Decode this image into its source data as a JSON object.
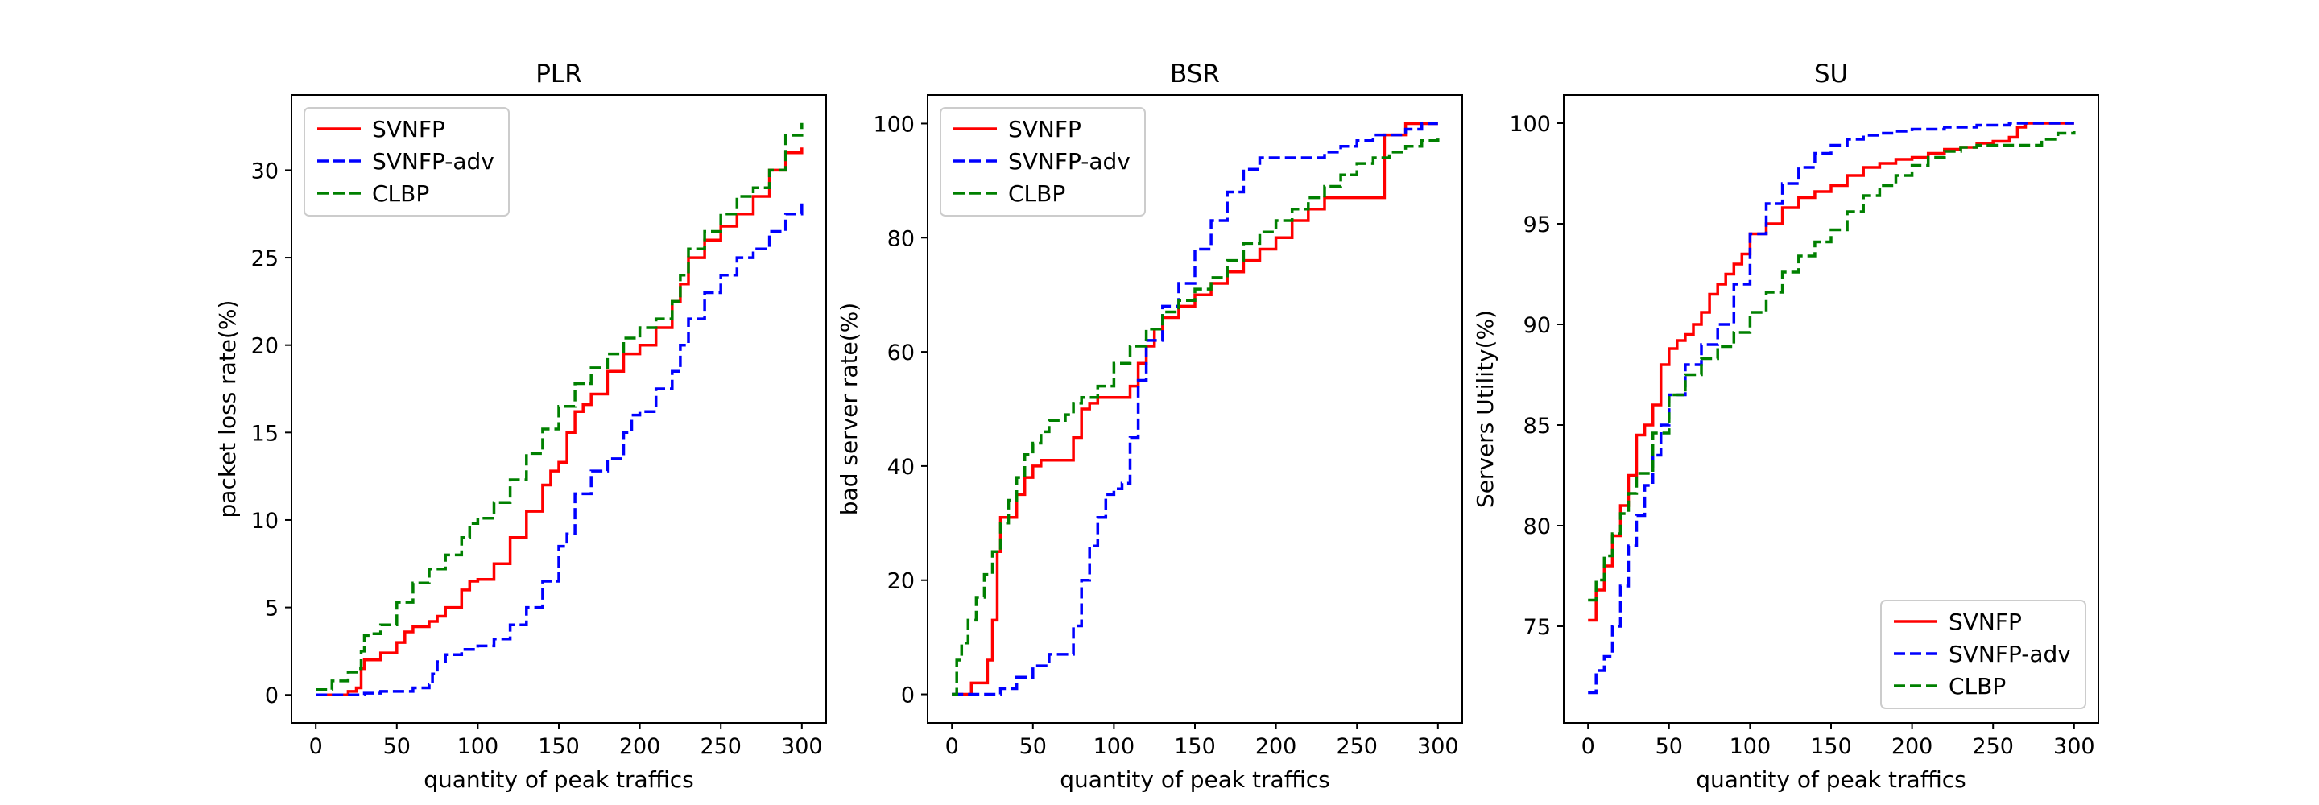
{
  "chart_data": [
    {
      "type": "line",
      "title": "PLR",
      "xlabel": "quantity of peak traffics",
      "ylabel": "packet loss rate(%)",
      "xlim": [
        -15,
        315
      ],
      "ylim": [
        -1.6,
        34.3
      ],
      "xticks": [
        0,
        50,
        100,
        150,
        200,
        250,
        300
      ],
      "yticks": [
        0,
        5,
        10,
        15,
        20,
        25,
        30
      ],
      "legend_location": "upper left",
      "grid": false,
      "series": [
        {
          "name": "SVNFP",
          "color": "#ff0000",
          "dash": "solid",
          "x": [
            0,
            10,
            20,
            25,
            28,
            30,
            40,
            50,
            55,
            60,
            70,
            75,
            80,
            90,
            95,
            100,
            110,
            120,
            130,
            140,
            145,
            150,
            155,
            160,
            165,
            170,
            180,
            190,
            200,
            210,
            220,
            225,
            230,
            240,
            250,
            260,
            270,
            280,
            290,
            300
          ],
          "y": [
            0,
            0,
            0.2,
            0.4,
            1.5,
            2.0,
            2.4,
            3.0,
            3.6,
            3.9,
            4.2,
            4.5,
            5.0,
            6.0,
            6.5,
            6.6,
            7.5,
            9.0,
            10.5,
            12.0,
            12.8,
            13.3,
            15.0,
            16.2,
            16.6,
            17.2,
            18.5,
            19.5,
            20.0,
            21.0,
            22.5,
            23.5,
            25.0,
            26.0,
            26.8,
            27.5,
            28.5,
            30.0,
            31.0,
            31.3
          ]
        },
        {
          "name": "SVNFP-adv",
          "color": "#0000ff",
          "dash": "dashed",
          "x": [
            0,
            20,
            30,
            40,
            60,
            70,
            72,
            75,
            80,
            90,
            100,
            110,
            120,
            130,
            140,
            150,
            155,
            160,
            170,
            180,
            190,
            195,
            200,
            210,
            220,
            225,
            230,
            240,
            250,
            260,
            270,
            280,
            290,
            300
          ],
          "y": [
            0,
            0,
            0.1,
            0.2,
            0.4,
            0.6,
            1.2,
            1.9,
            2.3,
            2.6,
            2.8,
            3.2,
            4.0,
            5.0,
            6.5,
            8.5,
            9.2,
            11.5,
            12.8,
            13.5,
            15.0,
            16.0,
            16.2,
            17.5,
            18.5,
            20.0,
            21.5,
            23.0,
            24.0,
            25.0,
            25.5,
            26.5,
            27.5,
            28.3
          ]
        },
        {
          "name": "CLBP",
          "color": "#008000",
          "dash": "dashed",
          "x": [
            0,
            10,
            20,
            25,
            28,
            30,
            35,
            40,
            50,
            60,
            70,
            80,
            90,
            95,
            100,
            110,
            120,
            130,
            140,
            150,
            160,
            170,
            180,
            190,
            200,
            210,
            220,
            225,
            230,
            240,
            250,
            260,
            270,
            280,
            290,
            300
          ],
          "y": [
            0.3,
            0.8,
            1.3,
            1.5,
            2.5,
            3.4,
            3.5,
            4.0,
            5.3,
            6.4,
            7.2,
            8.0,
            9.0,
            9.8,
            10.1,
            11.0,
            12.3,
            13.8,
            15.2,
            16.5,
            17.8,
            18.7,
            19.5,
            20.4,
            21.0,
            21.5,
            22.5,
            24.0,
            25.5,
            26.5,
            27.5,
            28.5,
            29.0,
            30.0,
            32.0,
            32.7
          ]
        }
      ]
    },
    {
      "type": "line",
      "title": "BSR",
      "xlabel": "quantity of peak traffics",
      "ylabel": "bad server rate(%)",
      "xlim": [
        -15,
        315
      ],
      "ylim": [
        -5,
        105
      ],
      "xticks": [
        0,
        50,
        100,
        150,
        200,
        250,
        300
      ],
      "yticks": [
        0,
        20,
        40,
        60,
        80,
        100
      ],
      "legend_location": "upper left",
      "grid": false,
      "series": [
        {
          "name": "SVNFP",
          "color": "#ff0000",
          "dash": "solid",
          "x": [
            0,
            8,
            12,
            15,
            22,
            25,
            28,
            30,
            35,
            40,
            45,
            50,
            55,
            60,
            70,
            75,
            80,
            85,
            90,
            100,
            110,
            115,
            120,
            125,
            130,
            140,
            150,
            160,
            170,
            180,
            190,
            200,
            210,
            220,
            230,
            240,
            250,
            265,
            267,
            270,
            280,
            290,
            300
          ],
          "y": [
            0,
            0,
            2,
            2,
            6,
            13,
            25,
            31,
            31,
            35,
            38,
            40,
            41,
            41,
            41,
            45,
            50,
            51,
            52,
            52,
            54,
            58,
            61,
            64,
            66,
            68,
            70,
            72,
            74,
            76,
            78,
            80,
            83,
            85,
            87,
            87,
            87,
            87,
            98,
            98,
            100,
            100,
            100
          ]
        },
        {
          "name": "SVNFP-adv",
          "color": "#0000ff",
          "dash": "dashed",
          "x": [
            0,
            25,
            30,
            40,
            50,
            60,
            70,
            75,
            80,
            85,
            90,
            95,
            100,
            105,
            110,
            115,
            120,
            130,
            140,
            150,
            160,
            170,
            180,
            190,
            200,
            210,
            220,
            230,
            240,
            250,
            260,
            270,
            280,
            290,
            300
          ],
          "y": [
            0,
            0,
            1,
            3,
            5,
            7,
            7,
            12,
            20,
            26,
            31,
            35,
            36,
            37,
            45,
            55,
            62,
            68,
            72,
            78,
            83,
            88,
            92,
            94,
            94,
            94,
            94,
            95,
            96,
            97,
            98,
            98,
            99,
            100,
            100
          ]
        },
        {
          "name": "CLBP",
          "color": "#008000",
          "dash": "dashed",
          "x": [
            0,
            3,
            6,
            10,
            15,
            20,
            25,
            30,
            35,
            40,
            45,
            50,
            55,
            60,
            70,
            75,
            80,
            90,
            100,
            110,
            120,
            130,
            140,
            150,
            160,
            170,
            180,
            190,
            200,
            210,
            220,
            230,
            240,
            250,
            260,
            270,
            280,
            290,
            300
          ],
          "y": [
            0,
            6,
            9,
            13,
            17,
            21,
            25,
            30,
            34,
            38,
            42,
            44,
            46,
            48,
            49,
            51,
            52,
            54,
            58,
            61,
            64,
            67,
            69,
            71,
            73,
            76,
            79,
            81,
            83,
            85,
            87,
            89,
            91,
            93,
            94,
            95,
            96,
            97,
            98
          ]
        }
      ]
    },
    {
      "type": "line",
      "title": "SU",
      "xlabel": "quantity of peak traffics",
      "ylabel": "Servers Utility(%)",
      "xlim": [
        -15,
        315
      ],
      "ylim": [
        70.2,
        101.4
      ],
      "xticks": [
        0,
        50,
        100,
        150,
        200,
        250,
        300
      ],
      "yticks": [
        75,
        80,
        85,
        90,
        95,
        100
      ],
      "legend_location": "lower right",
      "grid": false,
      "series": [
        {
          "name": "SVNFP",
          "color": "#ff0000",
          "dash": "solid",
          "x": [
            0,
            5,
            10,
            15,
            20,
            25,
            30,
            35,
            40,
            45,
            50,
            55,
            60,
            65,
            70,
            75,
            80,
            85,
            90,
            95,
            100,
            110,
            120,
            130,
            140,
            150,
            160,
            170,
            180,
            190,
            200,
            210,
            220,
            230,
            240,
            250,
            260,
            265,
            270,
            280,
            290,
            300
          ],
          "y": [
            75.3,
            76.8,
            78.0,
            79.5,
            81.0,
            82.5,
            84.5,
            85.0,
            86.0,
            88.0,
            88.8,
            89.2,
            89.5,
            90.0,
            90.6,
            91.5,
            92.0,
            92.5,
            93.0,
            93.5,
            94.5,
            95.0,
            95.8,
            96.3,
            96.6,
            96.9,
            97.4,
            97.8,
            98.0,
            98.2,
            98.3,
            98.5,
            98.7,
            98.8,
            99.0,
            99.1,
            99.3,
            99.8,
            100.0,
            100.0,
            100.0,
            100.0
          ]
        },
        {
          "name": "SVNFP-adv",
          "color": "#0000ff",
          "dash": "dashed",
          "x": [
            0,
            5,
            10,
            15,
            20,
            25,
            30,
            35,
            40,
            45,
            50,
            60,
            70,
            80,
            90,
            100,
            110,
            120,
            130,
            140,
            150,
            160,
            170,
            180,
            190,
            200,
            220,
            240,
            260,
            280,
            300
          ],
          "y": [
            71.7,
            72.8,
            73.5,
            75.0,
            77.0,
            79.0,
            80.5,
            82.0,
            83.5,
            85.0,
            86.5,
            88.0,
            89.0,
            90.0,
            92.0,
            94.5,
            96.0,
            97.0,
            97.8,
            98.5,
            98.9,
            99.2,
            99.4,
            99.5,
            99.6,
            99.7,
            99.8,
            99.9,
            100.0,
            100.0,
            100.0
          ]
        },
        {
          "name": "CLBP",
          "color": "#008000",
          "dash": "dashed",
          "x": [
            0,
            5,
            10,
            15,
            20,
            25,
            30,
            40,
            50,
            60,
            70,
            80,
            90,
            100,
            110,
            120,
            130,
            140,
            150,
            160,
            170,
            180,
            190,
            200,
            210,
            220,
            230,
            240,
            250,
            260,
            270,
            280,
            290,
            300
          ],
          "y": [
            76.3,
            77.3,
            78.5,
            79.6,
            80.6,
            81.6,
            82.6,
            84.6,
            86.5,
            87.5,
            88.3,
            88.9,
            89.6,
            90.6,
            91.6,
            92.6,
            93.4,
            94.1,
            94.7,
            95.6,
            96.4,
            96.9,
            97.4,
            97.9,
            98.3,
            98.6,
            98.8,
            98.9,
            98.9,
            98.9,
            98.9,
            99.2,
            99.5,
            99.6
          ]
        }
      ]
    }
  ]
}
